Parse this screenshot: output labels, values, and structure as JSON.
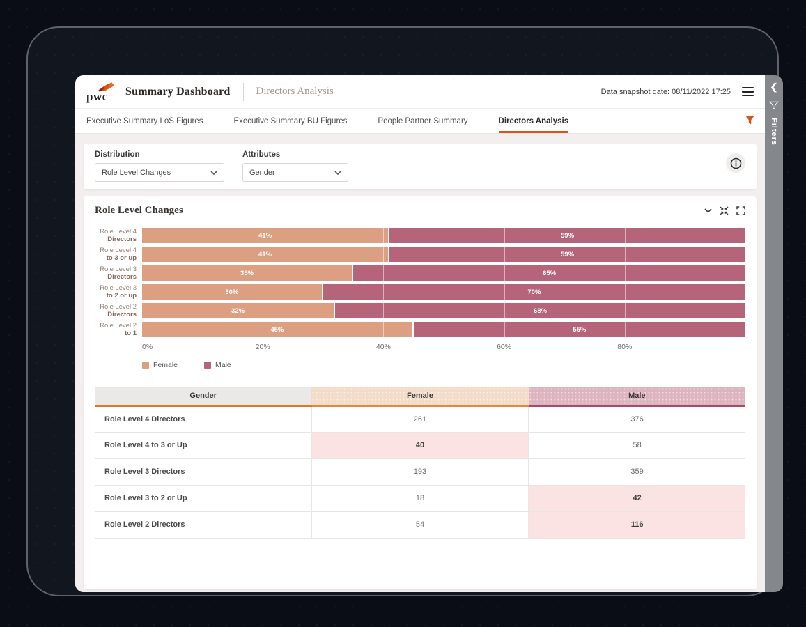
{
  "header": {
    "logo_text": "pwc",
    "app_title": "Summary Dashboard",
    "page_title": "Directors Analysis",
    "snapshot_label": "Data snapshot date: 08/11/2022 17:25"
  },
  "tabs": [
    {
      "label": "Executive Summary LoS Figures",
      "active": false
    },
    {
      "label": "Executive Summary BU Figures",
      "active": false
    },
    {
      "label": "People Partner Summary",
      "active": false
    },
    {
      "label": "Directors Analysis",
      "active": true
    }
  ],
  "filters_rail": {
    "label": "Filters"
  },
  "controls": {
    "distribution_label": "Distribution",
    "distribution_value": "Role Level Changes",
    "attributes_label": "Attributes",
    "attributes_value": "Gender"
  },
  "chart_section": {
    "title": "Role Level Changes"
  },
  "chart_data": {
    "type": "bar",
    "orientation": "horizontal",
    "stacked": true,
    "unit": "percent",
    "categories": [
      "Role Level 4 Directors",
      "Role Level 4 to 3 or up",
      "Role Level 3 Directors",
      "Role Level 3 to 2 or up",
      "Role Level 2 Directors",
      "Role Level 2 to 1"
    ],
    "category_lines": [
      [
        "Role Level 4",
        "Directors"
      ],
      [
        "Role Level 4",
        "to 3 or up"
      ],
      [
        "Role Level 3",
        "Directors"
      ],
      [
        "Role Level 3",
        "to 2 or up"
      ],
      [
        "Role Level 2",
        "Directors"
      ],
      [
        "Role Level 2",
        "to 1"
      ]
    ],
    "series": [
      {
        "name": "Female",
        "color": "#dd9f82",
        "values": [
          41,
          41,
          35,
          30,
          32,
          45
        ]
      },
      {
        "name": "Male",
        "color": "#b5647a",
        "values": [
          59,
          59,
          65,
          70,
          68,
          55
        ]
      }
    ],
    "x_ticks": [
      "0%",
      "20%",
      "40%",
      "60%",
      "80%"
    ],
    "x_tick_positions": [
      0,
      20,
      40,
      60,
      80
    ],
    "gridlines": [
      20,
      40,
      60,
      80
    ],
    "xlim": [
      0,
      100
    ],
    "legend_position": "bottom"
  },
  "table": {
    "columns": [
      "Gender",
      "Female",
      "Male"
    ],
    "rows": [
      {
        "label": "Role Level 4 Directors",
        "female": "261",
        "male": "376",
        "female_hl": false,
        "male_hl": false
      },
      {
        "label": "Role Level 4 to 3 or Up",
        "female": "40",
        "male": "58",
        "female_hl": true,
        "male_hl": false
      },
      {
        "label": "Role Level 3 Directors",
        "female": "193",
        "male": "359",
        "female_hl": false,
        "male_hl": false
      },
      {
        "label": "Role Level 3 to 2 or Up",
        "female": "18",
        "male": "42",
        "female_hl": false,
        "male_hl": true
      },
      {
        "label": "Role Level 2 Directors",
        "female": "54",
        "male": "116",
        "female_hl": false,
        "male_hl": true
      }
    ]
  },
  "colors": {
    "accent_orange": "#d9531e",
    "female": "#dd9f82",
    "male": "#b5647a",
    "highlight_pink": "#fae3e2"
  },
  "icons": {
    "rail_chevron": "collapse-left-icon",
    "rail_funnel": "filter-icon",
    "menu": "hamburger-menu-icon",
    "tab_filter": "filter-icon",
    "info": "info-icon",
    "chart_head": [
      "chevron-down-icon",
      "compress-icon",
      "expand-icon"
    ]
  }
}
